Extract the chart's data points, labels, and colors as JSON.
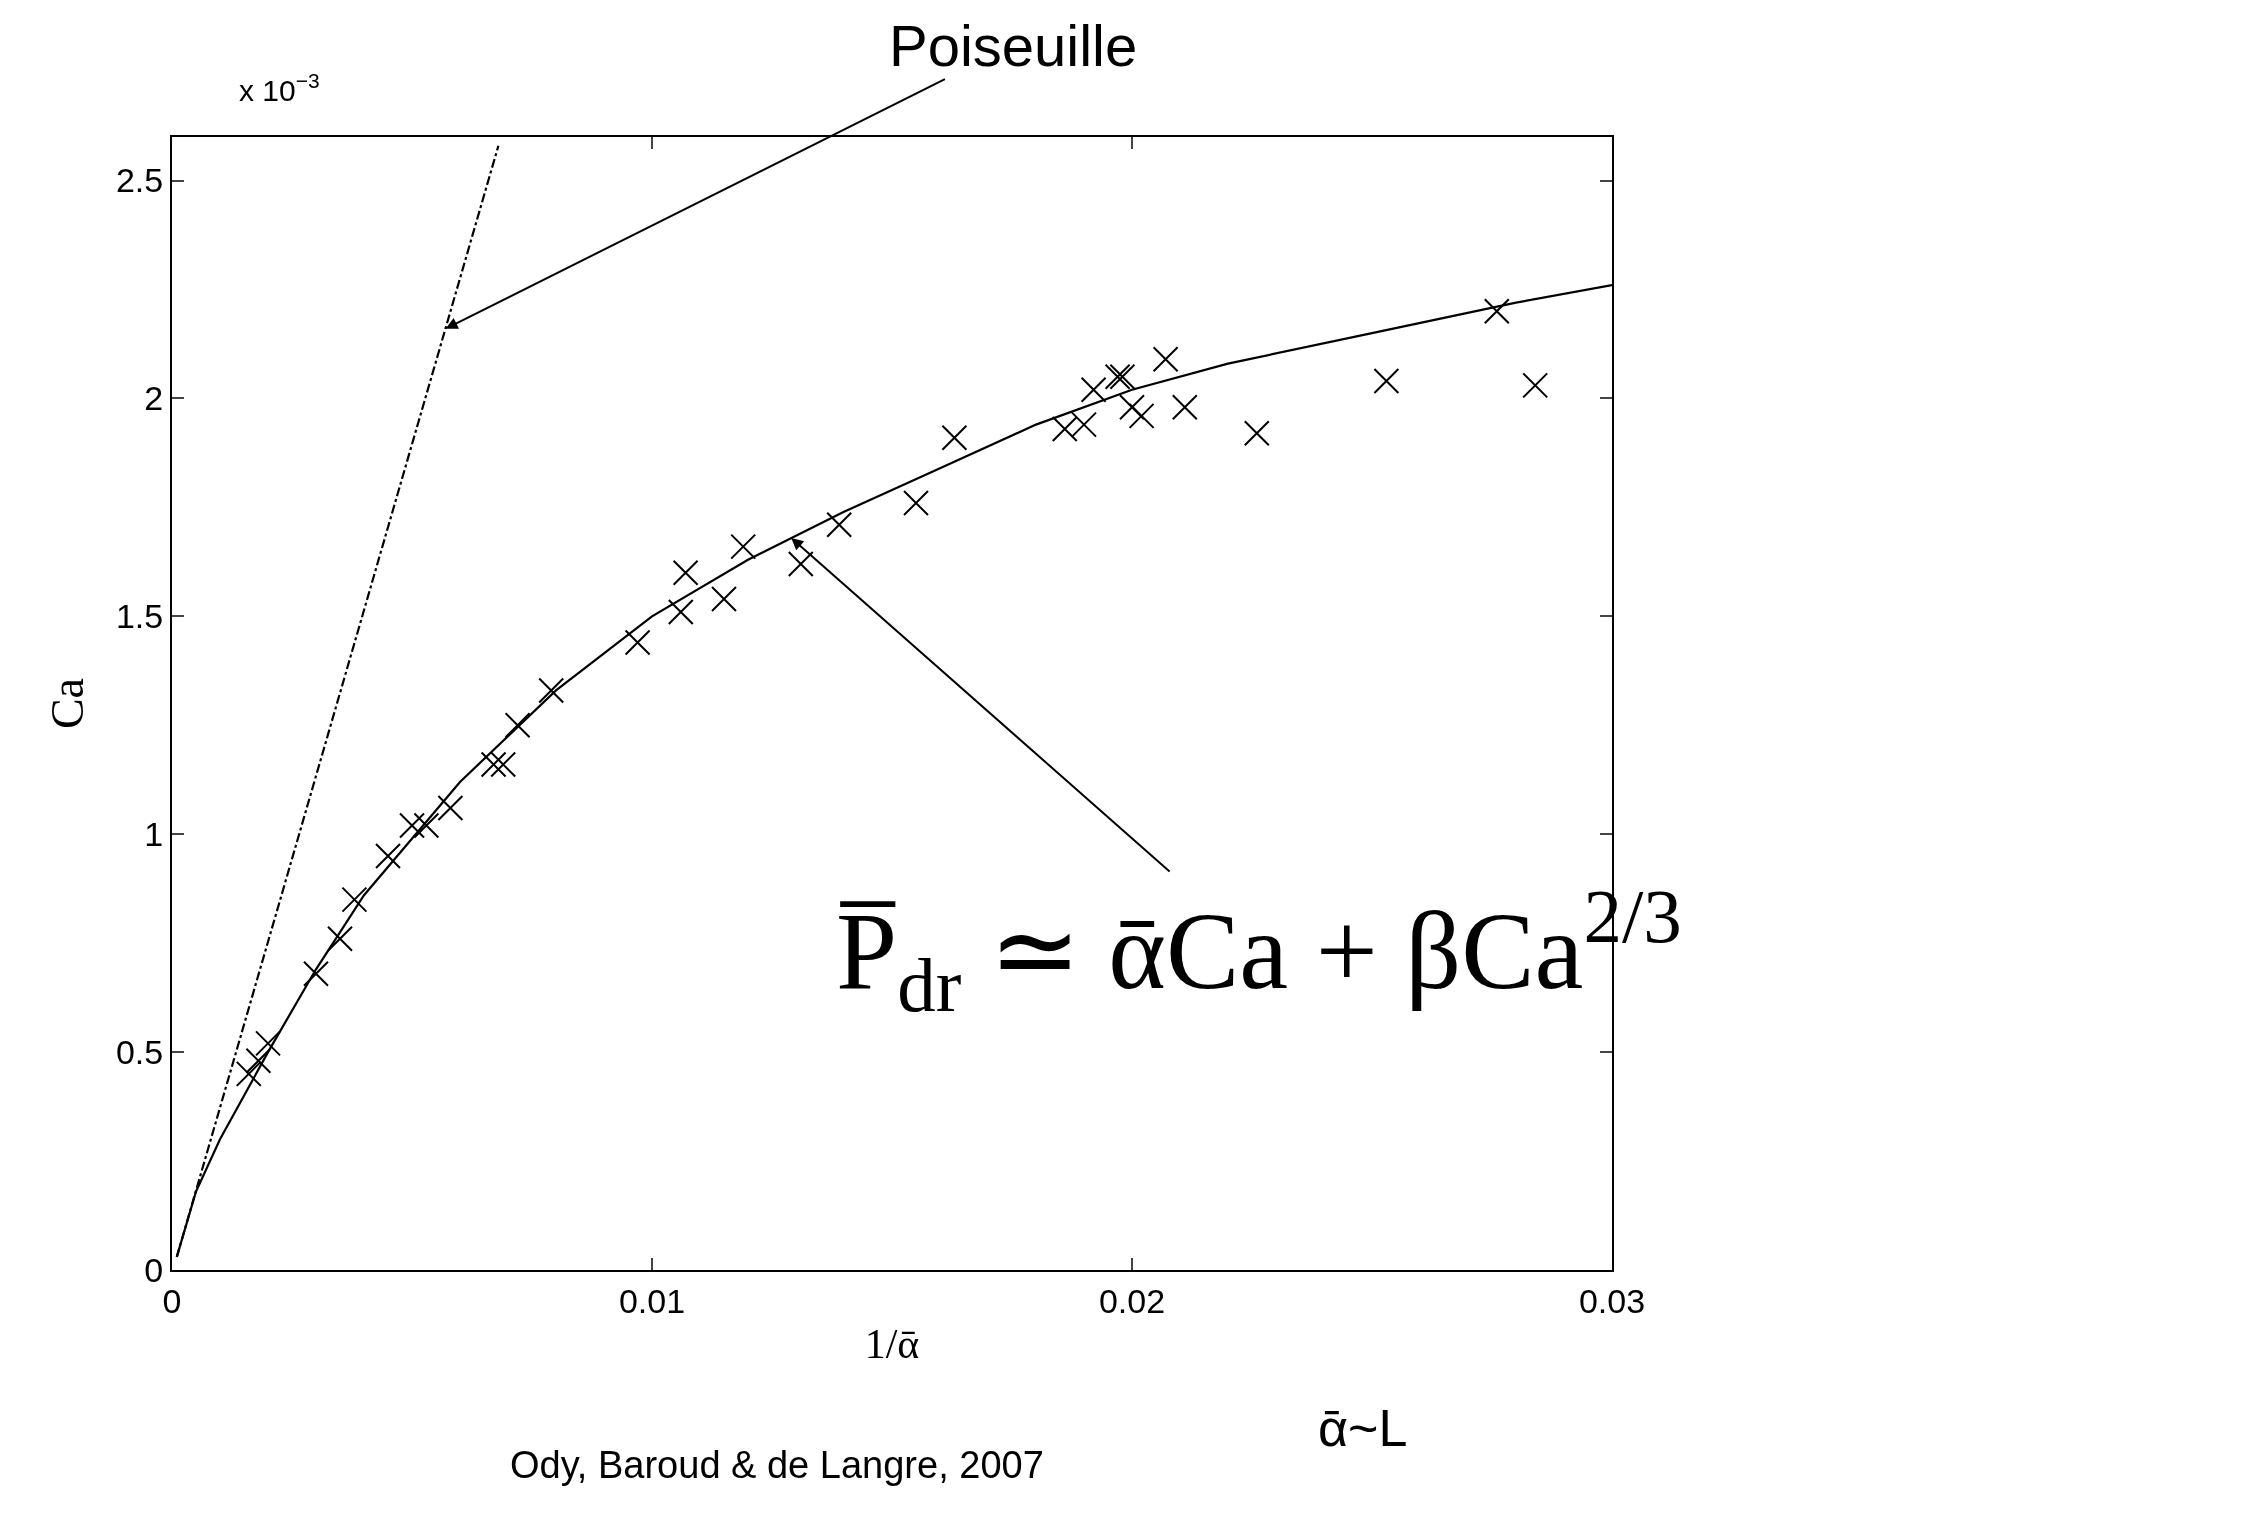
{
  "chart_data": {
    "type": "scatter",
    "xlabel": "1/ᾱ",
    "ylabel": "Ca",
    "xlim": [
      0,
      0.03
    ],
    "xticks": [
      0,
      0.01,
      0.02,
      0.03
    ],
    "ylim": [
      0,
      2.6
    ],
    "yticks": [
      0,
      0.5,
      1,
      1.5,
      2,
      2.5
    ],
    "series": [
      {
        "color": "#000000",
        "marker": "cross",
        "x": [
          0.0016,
          0.0018,
          0.002,
          0.003,
          0.0035,
          0.0038,
          0.0045,
          0.005,
          0.0053,
          0.0058,
          0.0067,
          0.0069,
          0.0072,
          0.0079,
          0.0097,
          0.0106,
          0.0107,
          0.0115,
          0.0119,
          0.0131,
          0.0139,
          0.0155,
          0.0163,
          0.0186,
          0.019,
          0.0192,
          0.0197,
          0.0198,
          0.02,
          0.0202,
          0.0207,
          0.0211,
          0.0226,
          0.0253,
          0.0276,
          0.0284
        ],
        "values": [
          0.45,
          0.48,
          0.52,
          0.68,
          0.76,
          0.85,
          0.95,
          1.02,
          1.02,
          1.06,
          1.16,
          1.16,
          1.25,
          1.33,
          1.44,
          1.51,
          1.6,
          1.54,
          1.66,
          1.62,
          1.71,
          1.76,
          1.91,
          1.93,
          1.94,
          2.02,
          2.05,
          2.05,
          1.98,
          1.96,
          2.09,
          1.98,
          1.92,
          2.04,
          2.2,
          2.03
        ]
      },
      {
        "type": "line",
        "color": "#000000",
        "line_style": "solid",
        "x": [
          0.0001,
          0.0005,
          0.001,
          0.002,
          0.003,
          0.004,
          0.006,
          0.008,
          0.01,
          0.012,
          0.014,
          0.016,
          0.018,
          0.02,
          0.022,
          0.025,
          0.028,
          0.03
        ],
        "values": [
          0.03,
          0.18,
          0.3,
          0.5,
          0.69,
          0.86,
          1.12,
          1.33,
          1.5,
          1.63,
          1.74,
          1.84,
          1.94,
          2.02,
          2.08,
          2.15,
          2.22,
          2.26
        ]
      },
      {
        "type": "line",
        "color": "#000000",
        "line_style": "dashdot",
        "x": [
          0.0001,
          0.0068
        ],
        "values": [
          0.03,
          2.58
        ]
      }
    ],
    "annotations": [
      {
        "text": "Poiseuille",
        "x": 0.0057,
        "y": 2.16
      },
      {
        "text": "P̅$_{dr}$ ≃ ᾱCa + βCa$^{2/3}$",
        "x": 0.0129,
        "y": 1.68
      },
      "x 10$^{−3}$",
      "ᾱ~L",
      "Ody, Baroud & de Langre, 2007"
    ]
  }
}
